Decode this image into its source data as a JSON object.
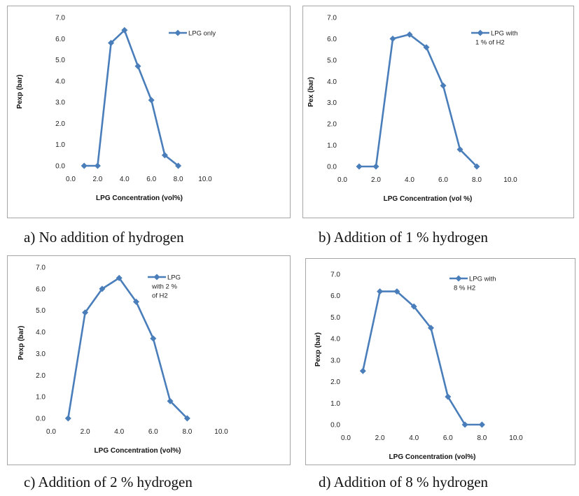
{
  "chart_data": [
    {
      "type": "line",
      "x": [
        1,
        2,
        3,
        4,
        5,
        6,
        7,
        8
      ],
      "series": [
        {
          "name": "LPG only",
          "values": [
            0,
            0,
            5.8,
            6.4,
            4.7,
            3.1,
            0.5,
            0
          ]
        }
      ],
      "legend_lines": [
        "LPG only"
      ],
      "xlabel": "LPG Concentration (vol%)",
      "ylabel": "Pexp (bar)",
      "xlim": [
        0,
        10
      ],
      "ylim": [
        0,
        7
      ],
      "xticks": [
        "0.0",
        "2.0",
        "4.0",
        "6.0",
        "8.0",
        "10.0"
      ],
      "yticks": [
        "0.0",
        "1.0",
        "2.0",
        "3.0",
        "4.0",
        "5.0",
        "6.0",
        "7.0"
      ],
      "legend_position": "top-right",
      "grid": false,
      "color": "#4a7ebb",
      "caption": "a) No addition of  hydrogen"
    },
    {
      "type": "line",
      "x": [
        1,
        2,
        3,
        4,
        5,
        6,
        7,
        8
      ],
      "series": [
        {
          "name": "LPG with 1 % of H2",
          "values": [
            0,
            0,
            6.0,
            6.2,
            5.6,
            3.8,
            0.8,
            0
          ]
        }
      ],
      "legend_lines": [
        "LPG with",
        "1 % of H2"
      ],
      "xlabel": "LPG Concentration (vol %)",
      "ylabel": "Pex (bar)",
      "xlim": [
        0,
        10
      ],
      "ylim": [
        0,
        7
      ],
      "xticks": [
        "0.0",
        "2.0",
        "4.0",
        "6.0",
        "8.0",
        "10.0"
      ],
      "yticks": [
        "0.0",
        "1.0",
        "2.0",
        "3.0",
        "4.0",
        "5.0",
        "6.0",
        "7.0"
      ],
      "legend_position": "top-right",
      "grid": false,
      "color": "#4a7ebb",
      "caption": "b) Addition of 1 % hydrogen"
    },
    {
      "type": "line",
      "x": [
        1,
        2,
        3,
        4,
        5,
        6,
        7,
        8
      ],
      "series": [
        {
          "name": "LPG with 2 % of H2",
          "values": [
            0,
            4.9,
            6.0,
            6.5,
            5.4,
            3.7,
            0.8,
            0
          ]
        }
      ],
      "legend_lines": [
        "LPG",
        "with 2 %",
        "of H2"
      ],
      "xlabel": "LPG Concentration (vol%)",
      "ylabel": "Pexp (bar)",
      "xlim": [
        0,
        10
      ],
      "ylim": [
        0,
        7
      ],
      "xticks": [
        "0.0",
        "2.0",
        "4.0",
        "6.0",
        "8.0",
        "10.0"
      ],
      "yticks": [
        "0.0",
        "1.0",
        "2.0",
        "3.0",
        "4.0",
        "5.0",
        "6.0",
        "7.0"
      ],
      "legend_position": "top-right",
      "grid": false,
      "color": "#4a7ebb",
      "caption": "c) Addition of  2 % hydrogen"
    },
    {
      "type": "line",
      "x": [
        1,
        2,
        3,
        4,
        5,
        6,
        7,
        8
      ],
      "series": [
        {
          "name": "LPG with 8 % H2",
          "values": [
            2.5,
            6.2,
            6.2,
            5.5,
            4.5,
            1.3,
            0,
            0
          ]
        }
      ],
      "legend_lines": [
        "LPG with",
        "8 % H2"
      ],
      "xlabel": "LPG Concentration (vol%)",
      "ylabel": "Pexp (bar)",
      "xlim": [
        0,
        10
      ],
      "ylim": [
        0,
        7
      ],
      "xticks": [
        "0.0",
        "2.0",
        "4.0",
        "6.0",
        "8.0",
        "10.0"
      ],
      "yticks": [
        "0.0",
        "1.0",
        "2.0",
        "3.0",
        "4.0",
        "5.0",
        "6.0",
        "7.0"
      ],
      "legend_position": "top-right",
      "grid": false,
      "color": "#4a7ebb",
      "caption": "d) Addition of  8 % hydrogen"
    }
  ]
}
